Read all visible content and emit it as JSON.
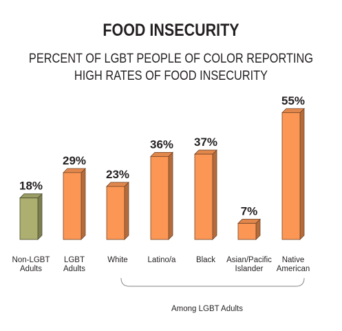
{
  "chart_data": {
    "type": "bar",
    "title": "FOOD INSECURITY",
    "subtitle_lines": [
      "PERCENT OF LGBT PEOPLE OF COLOR REPORTING",
      "HIGH RATES OF FOOD INSECURITY"
    ],
    "categories": [
      "Non-LGBT Adults",
      "LGBT Adults",
      "White",
      "Latino/a",
      "Black",
      "Asian/Pacific Islander",
      "Native American"
    ],
    "category_label_lines": [
      [
        "Non-LGBT",
        "Adults"
      ],
      [
        "LGBT",
        "Adults"
      ],
      [
        "White"
      ],
      [
        "Latino/a"
      ],
      [
        "Black"
      ],
      [
        "Asian/Pacific",
        "Islander"
      ],
      [
        "Native",
        "American"
      ]
    ],
    "values": [
      18,
      29,
      23,
      36,
      37,
      7,
      55
    ],
    "value_labels": [
      "18%",
      "29%",
      "23%",
      "36%",
      "37%",
      "7%",
      "55%"
    ],
    "unit": "%",
    "bar_colors": [
      "#acaf6f",
      "#fb9654",
      "#fb9654",
      "#fb9654",
      "#fb9654",
      "#fb9654",
      "#fb9654"
    ],
    "bracket_label": "Among LGBT Adults",
    "ylim": [
      0,
      60
    ],
    "grid": false,
    "legend": "none"
  }
}
